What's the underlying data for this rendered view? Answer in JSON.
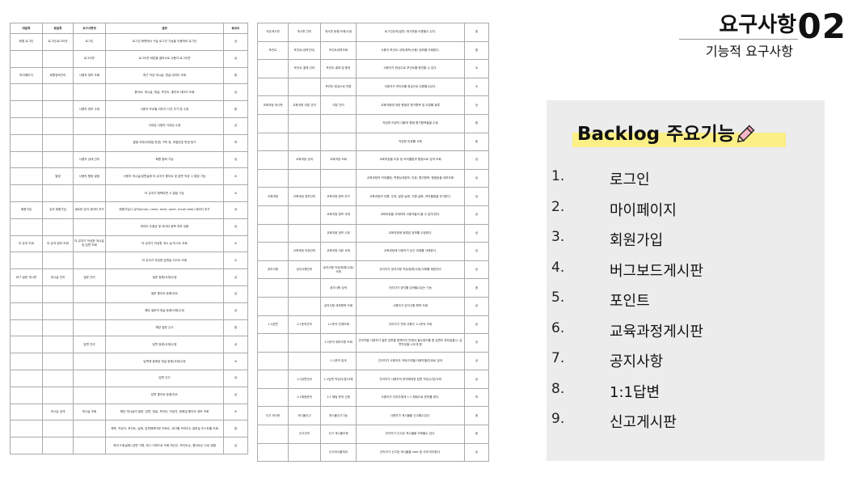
{
  "header": {
    "title": "요구사항",
    "number": "02",
    "subtitle": "기능적 요구사항"
  },
  "panel": {
    "title": "Backlog 주요기능",
    "items": [
      {
        "num": "1.",
        "label": "로그인"
      },
      {
        "num": "2.",
        "label": "마이페이지"
      },
      {
        "num": "3.",
        "label": "회원가입"
      },
      {
        "num": "4.",
        "label": "버그보드게시판"
      },
      {
        "num": "5.",
        "label": "포인트"
      },
      {
        "num": "6.",
        "label": "교육과정게시판"
      },
      {
        "num": "7.",
        "label": "공지사항"
      },
      {
        "num": "8.",
        "label": "1:1답변"
      },
      {
        "num": "9.",
        "label": "신고게시판"
      }
    ]
  },
  "doc_left": {
    "headers": [
      "대분류",
      "중분류",
      "요구사항명",
      "설명",
      "중요도"
    ],
    "rows": [
      [
        "회원 로그인",
        "로그인/로그아웃",
        "로그인",
        "로그인 화면에서 구글 로그인 기능을 이용하여 로그인",
        "상"
      ],
      [
        "",
        "",
        "로그아웃",
        "로그아웃 버튼을 클릭으로 사용자 로그아웃",
        "상"
      ],
      [
        "마이페이지",
        "회원정보관리",
        "사용자 정보 조회",
        "최근 작성 게시글, 댓글 데이터 조회",
        "중"
      ],
      [
        "",
        "",
        "",
        "좋아요, 게시글, 댓글, 포인트, 좋아요 데이터 조회",
        "상"
      ],
      [
        "",
        "",
        "사용자 정보 수정",
        "사용자 프로필 이미지 사진 추가 및 수정",
        "중"
      ],
      [
        "",
        "",
        "",
        "닉네임 사용자 닉네임 수정",
        "상"
      ],
      [
        "",
        "",
        "",
        "알람 여부(이메일 변경) 구독 등, 비밀번호 변경 동기",
        "하"
      ],
      [
        "",
        "",
        "사용자 상태 관리",
        "회원 탈퇴 기능",
        "상"
      ],
      [
        "",
        "알림",
        "사용자 활동 알림",
        "사용자 게시글/답변글에 타 유저가 좋아요 및 답변 작성 시 알림 기능",
        "소"
      ],
      [
        "",
        "",
        "",
        "타 유저가 채택되면 시 알림 기능",
        "소"
      ],
      [
        "회원가입",
        "유저 회원가입",
        "새로운 유저 데이터 추가",
        "회원가입시 유저(email, name, level, point, enroll date) 데이터 추가",
        "상"
      ],
      [
        "",
        "",
        "",
        "데이터 무결성 및 데이터 중복 여부 검증",
        "상"
      ],
      [
        "타 유저 조회",
        "타 유저 정보 조회",
        "타 유저가 작성한 게시글 및 답변 조회",
        "타 유저가 작성한 게시 글 리스트 조회",
        "소"
      ],
      [
        "",
        "",
        "",
        "타 유저가 작성한 답변글 리스트 조회",
        "소"
      ],
      [
        "버그 질문 게시판",
        "게시글 관리",
        "질문 관리",
        "질문 등록/삭제/수정",
        "상"
      ],
      [
        "",
        "",
        "",
        "질문 좋아요 등록/취소",
        "상"
      ],
      [
        "",
        "",
        "",
        "해당 질문의 댓글 등록/삭제/수정",
        "상"
      ],
      [
        "",
        "",
        "",
        "해당 질문 신고",
        "중"
      ],
      [
        "",
        "",
        "답변 관리",
        "답변 등록/삭제/수정",
        "상"
      ],
      [
        "",
        "",
        "",
        "답변에 등록된 댓글 등록/삭제/수정",
        "소"
      ],
      [
        "",
        "",
        "",
        "답변 신고",
        "상"
      ],
      [
        "",
        "",
        "",
        "답변 좋아요 등록/취소",
        "상"
      ],
      [
        "",
        "게시글 검색",
        "게시글 조회",
        "해당 게시글의 질문, 답변, 댓글, 포인트, 작성자, 등록일 좋아요 정보 조회",
        "소"
      ],
      [
        "",
        "",
        "",
        "제목, 작성자, 포인트, 날짜, 답변채택여부 조회수, 태그를 보여주는 질문글 리스트를 조회",
        "중"
      ],
      [
        "",
        "",
        "",
        "최대 5개(날짜) 답변 기록, 태그 키워드로 조회 최신순, 포인트순, 좋아요순 으로 정렬",
        "상"
      ]
    ]
  },
  "doc_right": {
    "rows": [
      [
        "자유게시판",
        "게시판 관리",
        "게시판 등록/삭제/수정",
        "로그인유저(일반) 게시판을 이용할수 있다.",
        "중"
      ],
      [
        "포인트",
        "포인트(내역관리)",
        "포인트내역조회",
        "사용자 포인트 내역(획득/사용) 정보를 조회한다.",
        "중"
      ],
      [
        "",
        "포인트 결제 관리",
        "포인트 결제 및 충전",
        "사용자가 현금으로 포인트를 충전할 수 있다.",
        "소"
      ],
      [
        "",
        "",
        "포인트 현금으로 전환",
        "사용자가 포인트를 현금으로 전환할수있다.",
        "소"
      ],
      [
        "교육과정 게시판",
        "교육과정 리뷰 관리",
        "리뷰 관리",
        "교육과정에 대한 평점과 평가항목 및 리뷰를 등록",
        "상"
      ],
      [
        "",
        "",
        "",
        "작성한 리뷰의 내용과 평점 평가항목들을 수정",
        "중"
      ],
      [
        "",
        "",
        "",
        "작성한 리뷰를 삭제",
        "중"
      ],
      [
        "",
        "교육과정 검색",
        "교육과정 조회",
        "교육과정을 리뷰 및 커리큘럼과 평점으로 검색 조회",
        "상"
      ],
      [
        "",
        "",
        "",
        "교육과정의 커리큘럼, 학원상세정보, 리뷰, 평가항목, 평점등을 세부조회",
        "상"
      ],
      [
        "교육과정",
        "교육과정 정보관리",
        "교육과정 정보 추가",
        "교육과정의 이름, 주최, 일정 날짜, 지원 날짜, 커리큘럼을 추가한다.",
        "상"
      ],
      [
        "",
        "",
        "교육과정 정보 삭제",
        "교육과정을 삭제하여 사용자들이 볼 수 없게 한다.",
        "상"
      ],
      [
        "",
        "",
        "교육과정 정보 수정",
        "교육과정에 등록된 정보를 수정한다.",
        "상"
      ],
      [
        "",
        "교육과정 리뷰관리",
        "교육과정 리뷰 삭제",
        "교육과정에 사용자가 남긴 리뷰를 삭제한다.",
        "상"
      ],
      [
        "공지사항",
        "공지사항관리",
        "공지사항 작성/등록/수정/삭제",
        "관리자가 공지사항 작성/등록/수정/삭제를 제한관리",
        "상"
      ],
      [
        "",
        "",
        "공지사항 검색",
        "관리자가 공지를 검색할수있는 기능",
        "중"
      ],
      [
        "",
        "",
        "공지사항 세부항목 조회",
        "사용자가 공지사항 항목 조회",
        "상"
      ],
      [
        "1:1답변",
        "1:1문의관리",
        "1:1문의 전체조회",
        "관리자가 전체 사용자 1:1문의 조회",
        "상"
      ],
      [
        "",
        "",
        "1:1문의 세부사항 조회",
        "관리자별 사용자가 질문 답변을 편해지지 만에서 필수정도를 함 답변이 완되었을시, 답변작성을 나오게 함",
        "상"
      ],
      [
        "",
        "",
        "1:1문의 검색",
        "관리자가 사용자의 카테고리별(사용자별)단위로 검색",
        "상"
      ],
      [
        "",
        "1:1답변관리",
        "1:1답변 작성/수정/삭제",
        "관리자가 사용자의 문의에대한 답변 작성/수정/삭제",
        "상"
      ],
      [
        "",
        "1:1채팅문의",
        "1:1 채팅 문의 신청",
        "사용자가 관리자에게 1:1 채팅으로 문의를 한다.",
        "하"
      ],
      [
        "신고 게시판",
        "게시물신고",
        "게시물신고기능",
        "사용자가 게시물을 신고할수있다.",
        "중"
      ],
      [
        "",
        "신고관리",
        "신고 게시물조회",
        "관리자가 신고된 게시물을 조회할수 있다.",
        "중"
      ],
      [
        "",
        "",
        "신고게시물처리",
        "관리자가 신고된 게시물을 hide 및 삭제 처리한다.",
        "상"
      ]
    ]
  }
}
